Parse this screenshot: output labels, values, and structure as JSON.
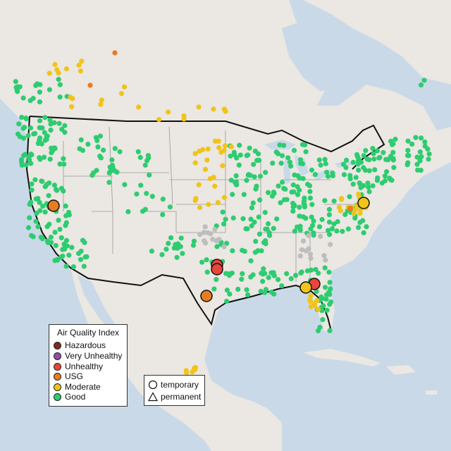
{
  "map": {
    "colors": {
      "water": "#c9d9e8",
      "land": "#ebe7e2",
      "land_shade": "#e3ded6",
      "border": "#111111",
      "state_line": "#999999"
    }
  },
  "legend": {
    "title": "Air Quality Index",
    "items": [
      {
        "label": "Hazardous",
        "color": "#7e2c20"
      },
      {
        "label": "Very Unhealthy",
        "color": "#8f4fa8"
      },
      {
        "label": "Unhealthy",
        "color": "#e8463c"
      },
      {
        "label": "USG",
        "color": "#e67d22"
      },
      {
        "label": "Moderate",
        "color": "#f0c419"
      },
      {
        "label": "Good",
        "color": "#2ecc71"
      }
    ]
  },
  "type_legend": {
    "items": [
      {
        "label": "temporary",
        "shape": "circle-icon"
      },
      {
        "label": "permanent",
        "shape": "triangle-icon"
      }
    ]
  },
  "colors": {
    "good": "#2ecc71",
    "moderate": "#f0c419",
    "usg": "#e67d22",
    "unhealthy": "#e8463c",
    "nodata": "#bdbdbd"
  }
}
